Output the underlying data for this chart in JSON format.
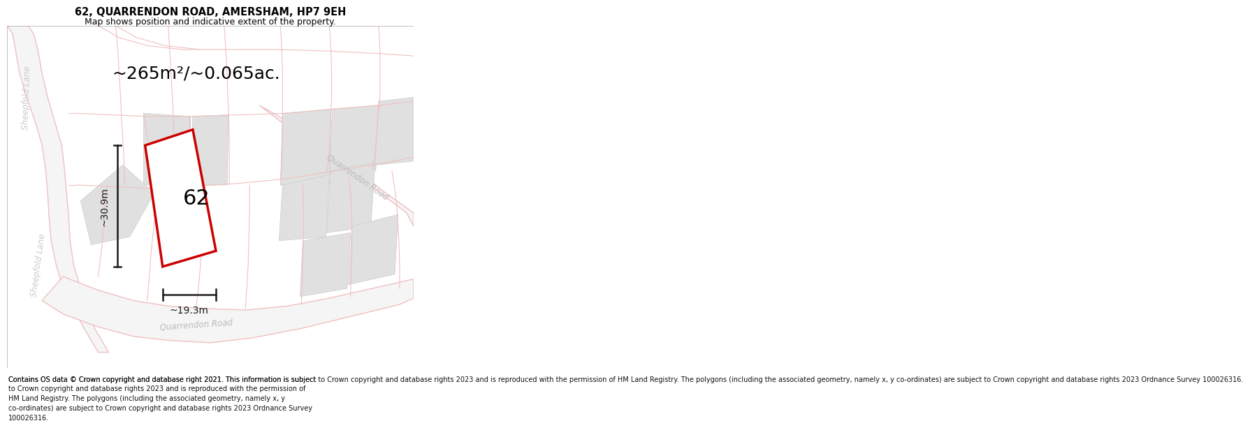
{
  "title": "62, QUARRENDON ROAD, AMERSHAM, HP7 9EH",
  "subtitle": "Map shows position and indicative extent of the property.",
  "area_text": "~265m²/~0.065ac.",
  "width_label": "~19.3m",
  "height_label": "~30.9m",
  "number_label": "62",
  "footer": "Contains OS data © Crown copyright and database right 2021. This information is subject to Crown copyright and database rights 2023 and is reproduced with the permission of HM Land Registry. The polygons (including the associated geometry, namely x, y co-ordinates) are subject to Crown copyright and database rights 2023 Ordnance Survey 100026316.",
  "bg_color": "#ffffff",
  "map_bg": "#ffffff",
  "plot_stroke": "#cc0000",
  "plot_fill": "#ffffff",
  "building_fill": "#e0e0e0",
  "building_stroke": "#cccccc",
  "road_line_color": "#f0c0c0",
  "road_fill_color": "#f7f7f7",
  "road_label_color": "#bbbbbb",
  "sheepfold_color": "#cccccc",
  "dim_color": "#1a1a1a",
  "title_color": "#000000",
  "title_fontsize": 10.5,
  "subtitle_fontsize": 9,
  "area_fontsize": 18,
  "number_fontsize": 22,
  "dim_fontsize": 10,
  "road_label_fontsize": 9,
  "footer_fontsize": 7
}
